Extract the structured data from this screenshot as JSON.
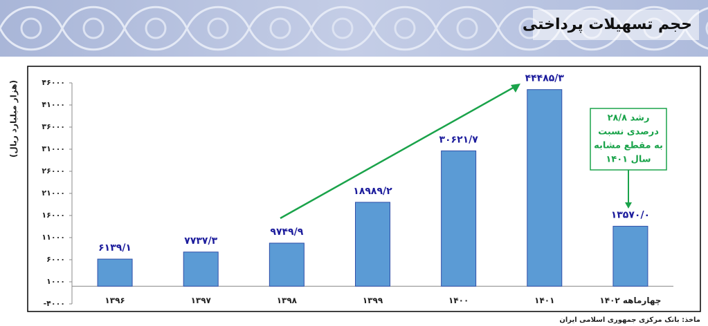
{
  "header": {
    "title": "حجم تسهیلات پرداختی"
  },
  "chart_data": {
    "type": "bar",
    "y_label": "(هزار میلیارد ریال)",
    "categories": [
      "۱۳۹۶",
      "۱۳۹۷",
      "۱۳۹۸",
      "۱۳۹۹",
      "۱۴۰۰",
      "۱۴۰۱",
      "چهارماهه ۱۴۰۲"
    ],
    "values": [
      6139.1,
      7737.3,
      9749.9,
      18989.2,
      30621.7,
      44485.3,
      13570.0
    ],
    "value_labels": [
      "۶۱۳۹/۱",
      "۷۷۳۷/۳",
      "۹۷۴۹/۹",
      "۱۸۹۸۹/۲",
      "۳۰۶۲۱/۷",
      "۴۴۴۸۵/۳",
      "۱۳۵۷۰/۰"
    ],
    "color": "#5b9bd5",
    "ylim": [
      -4000,
      46000
    ],
    "yticks": [
      {
        "value": -4000,
        "label": "-۴۰۰۰"
      },
      {
        "value": 1000,
        "label": "۱۰۰۰"
      },
      {
        "value": 6000,
        "label": "۶۰۰۰"
      },
      {
        "value": 11000,
        "label": "۱۱۰۰۰"
      },
      {
        "value": 16000,
        "label": "۱۶۰۰۰"
      },
      {
        "value": 21000,
        "label": "۲۱۰۰۰"
      },
      {
        "value": 26000,
        "label": "۲۶۰۰۰"
      },
      {
        "value": 31000,
        "label": "۳۱۰۰۰"
      },
      {
        "value": 36000,
        "label": "۳۶۰۰۰"
      },
      {
        "value": 41000,
        "label": "۴۱۰۰۰"
      },
      {
        "value": 46000,
        "label": "۴۶۰۰۰"
      }
    ],
    "annotation": [
      "رشد ۲۸/۸",
      "درصدی نسبت",
      "به مقطع مشابه",
      "سال ۱۴۰۱"
    ]
  },
  "footer": {
    "source": "ماخذ: بانک مرکزی جمهوری اسلامی ایران"
  }
}
